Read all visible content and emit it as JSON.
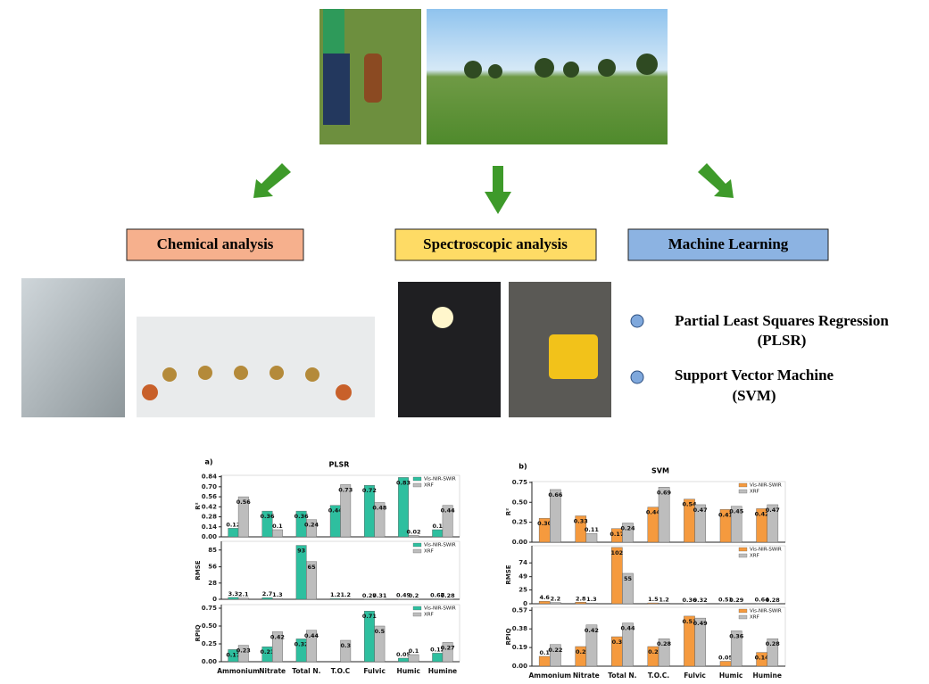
{
  "boxes": [
    "Chemical analysis",
    "Spectroscopic analysis",
    "Machine Learning"
  ],
  "methods": [
    {
      "name": "Partial Least Squares Regression",
      "abbr": "(PLSR)"
    },
    {
      "name": "Support Vector Machine",
      "abbr": "(SVM)"
    }
  ],
  "chart_data": [
    {
      "type": "bar",
      "label": "a)",
      "title": "PLSR",
      "categories": [
        "Ammonium",
        "Nitrate",
        "Total N.",
        "T.O.C",
        "Fulvic",
        "Humic",
        "Humine"
      ],
      "panels": [
        {
          "ylabel": "R²",
          "ylim": [
            0,
            0.86
          ],
          "yticks": [
            {
              "value": 0,
              "label": "0.00"
            },
            0.14,
            0.28,
            0.42,
            0.56,
            {
              "value": 0.7,
              "label": "0.70"
            },
            0.84
          ],
          "series": [
            {
              "name": "Vis-NIR-SWIR",
              "color": "#2ebf9f",
              "values": [
                0.12,
                0.36,
                0.36,
                0.44,
                0.72,
                0.83,
                0.1
              ]
            },
            {
              "name": "XRF",
              "color": "#bdbdbd",
              "values": [
                0.56,
                0.1,
                0.24,
                0.73,
                0.48,
                0.02,
                0.44
              ]
            }
          ]
        },
        {
          "ylabel": "RMSE",
          "ylim": [
            0,
            100
          ],
          "yticks": [
            0,
            28,
            56,
            85
          ],
          "series": [
            {
              "name": "Vis-NIR-SWIR",
              "color": "#2ebf9f",
              "values": [
                3.3,
                2.7,
                93,
                1.2,
                0.27,
                0.49,
                0.67
              ]
            },
            {
              "name": "XRF",
              "color": "#bdbdbd",
              "values": [
                2.1,
                1.3,
                65,
                1.2,
                0.31,
                0.2,
                0.28
              ]
            }
          ]
        },
        {
          "ylabel": "RPIQ",
          "ylim": [
            0,
            0.8
          ],
          "yticks": [
            {
              "value": 0,
              "label": "0.00"
            },
            0.25,
            {
              "value": 0.5,
              "label": "0.50"
            },
            0.75
          ],
          "series": [
            {
              "name": "Vis-NIR-SWIR",
              "color": "#2ebf9f",
              "values": [
                0.17,
                0.21,
                0.32,
                null,
                0.71,
                0.05,
                0.12
              ]
            },
            {
              "name": "XRF",
              "color": "#bdbdbd",
              "values": [
                0.23,
                0.42,
                0.44,
                0.3,
                0.5,
                0.1,
                0.27
              ]
            }
          ]
        }
      ]
    },
    {
      "type": "bar",
      "label": "b)",
      "title": "SVM",
      "categories": [
        "Ammonium",
        "Nitrate",
        "Total N.",
        "T.O.C.",
        "Fulvic",
        "Humic",
        "Humine"
      ],
      "panels": [
        {
          "ylabel": "R²",
          "ylim": [
            0,
            0.76
          ],
          "yticks": [
            {
              "value": 0,
              "label": "0.00"
            },
            0.25,
            {
              "value": 0.5,
              "label": "0.50"
            },
            0.75
          ],
          "series": [
            {
              "name": "Vis-NIR-SWIR",
              "color": "#f59a3e",
              "values": [
                0.3,
                0.33,
                0.17,
                0.44,
                0.54,
                0.41,
                0.42
              ],
              "value_labels": [
                "0.30",
                "0.33",
                "0.17",
                "0.44",
                "0.54",
                "0.41",
                "0.42"
              ]
            },
            {
              "name": "XRF",
              "color": "#bdbdbd",
              "values": [
                0.66,
                0.11,
                0.24,
                0.69,
                0.47,
                0.45,
                0.47
              ]
            }
          ]
        },
        {
          "ylabel": "RMSE",
          "ylim": [
            0,
            105
          ],
          "yticks": [
            0,
            25,
            49,
            74
          ],
          "series": [
            {
              "name": "Vis-NIR-SWIR",
              "color": "#f59a3e",
              "values": [
                4.6,
                2.8,
                102,
                1.5,
                0.36,
                0.51,
                0.64
              ]
            },
            {
              "name": "XRF",
              "color": "#bdbdbd",
              "values": [
                2.2,
                1.3,
                55,
                1.2,
                0.32,
                0.29,
                0.28
              ]
            }
          ]
        },
        {
          "ylabel": "RPIQ",
          "ylim": [
            0,
            0.6
          ],
          "yticks": [
            {
              "value": 0,
              "label": "0.00"
            },
            0.19,
            0.38,
            0.57
          ],
          "series": [
            {
              "name": "Vis-NIR-SWIR",
              "color": "#f59a3e",
              "values": [
                0.1,
                0.2,
                0.3,
                0.2,
                0.51,
                0.05,
                0.14
              ]
            },
            {
              "name": "XRF",
              "color": "#bdbdbd",
              "values": [
                0.22,
                0.42,
                0.44,
                0.28,
                0.49,
                0.36,
                0.28
              ]
            }
          ]
        }
      ]
    }
  ]
}
